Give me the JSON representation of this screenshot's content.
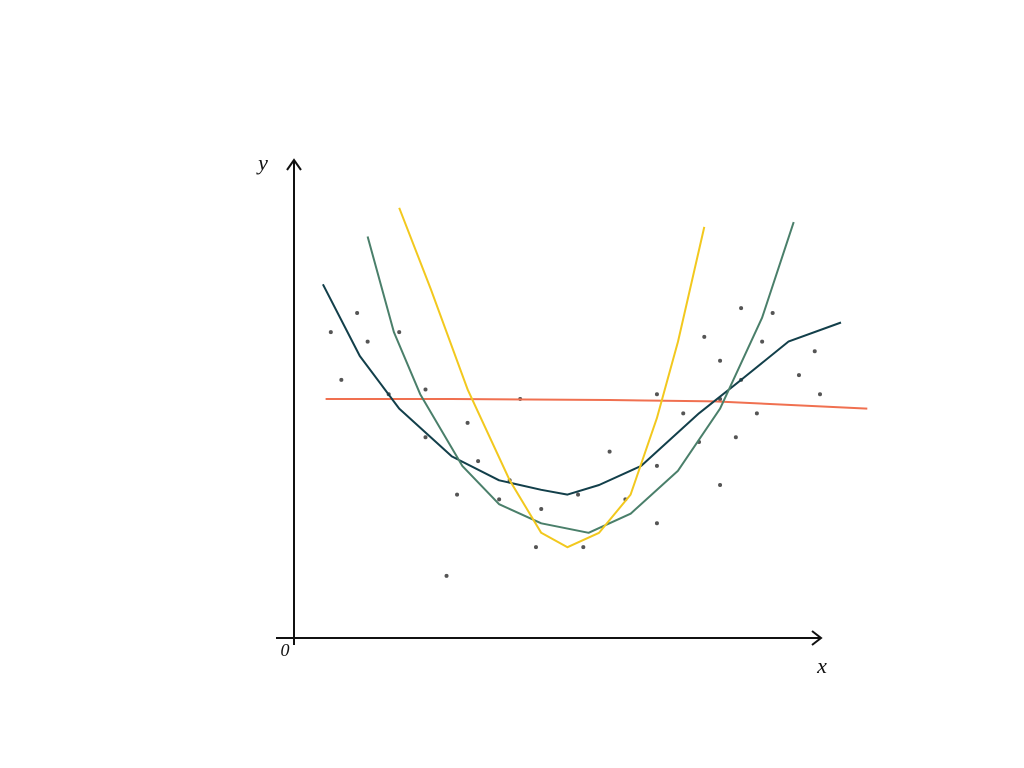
{
  "chart_data": {
    "type": "scatter",
    "x_label": "x",
    "y_label": "y",
    "xlim": [
      0,
      100
    ],
    "ylim": [
      0,
      100
    ],
    "xticks": [
      0
    ],
    "grid": false,
    "series": [
      {
        "kind": "points",
        "color": "#555555",
        "x": [
          7,
          9,
          12,
          14,
          18,
          20,
          25,
          25,
          29,
          31,
          33,
          35,
          39,
          41,
          43,
          46,
          47,
          54,
          55,
          60,
          63,
          69,
          69,
          69,
          74,
          77,
          78,
          81,
          81,
          81,
          84,
          85,
          85,
          88,
          89,
          91,
          96,
          99,
          100
        ],
        "values": [
          64,
          54,
          68,
          62,
          51,
          64,
          42,
          52,
          13,
          30,
          45,
          37,
          29,
          33,
          50,
          19,
          27,
          30,
          19,
          39,
          29,
          36,
          51,
          24,
          47,
          41,
          63,
          32,
          58,
          50,
          42,
          69,
          54,
          47,
          62,
          68,
          55,
          60,
          51
        ]
      },
      {
        "kind": "line",
        "color": "#f07050",
        "x": [
          6,
          30,
          60,
          80,
          109
        ],
        "values": [
          50,
          50,
          49.8,
          49.5,
          48
        ]
      },
      {
        "kind": "line",
        "color": "#123f4a",
        "x": [
          5.5,
          12.5,
          20,
          30,
          39,
          47,
          52,
          58,
          66,
          77,
          85,
          94,
          104
        ],
        "values": [
          74,
          59,
          48,
          38,
          33,
          31,
          30,
          32,
          36,
          47,
          54,
          62,
          66
        ]
      },
      {
        "kind": "line",
        "color": "#4a7f6a",
        "x": [
          14,
          19,
          24,
          32,
          39,
          47,
          56,
          64,
          73,
          81,
          89,
          95
        ],
        "values": [
          84,
          64,
          51,
          36,
          28,
          24,
          22,
          26,
          35,
          48,
          67,
          87
        ]
      },
      {
        "kind": "line",
        "color": "#f2c81e",
        "x": [
          20,
          26,
          33,
          41,
          47,
          52,
          58,
          64,
          69,
          73,
          78
        ],
        "values": [
          90,
          73,
          52,
          33,
          22,
          19,
          22,
          30,
          46,
          62,
          86
        ]
      }
    ]
  }
}
